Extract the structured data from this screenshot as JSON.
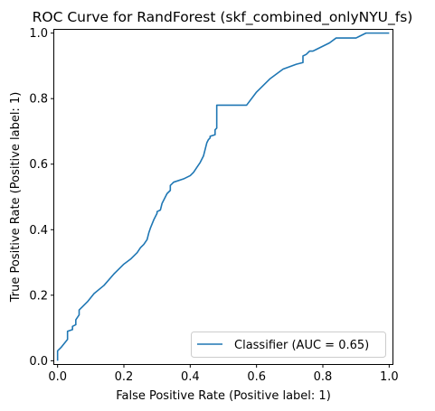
{
  "chart_data": {
    "type": "line",
    "title": "ROC Curve for RandForest (skf_combined_onlyNYU_fs)",
    "xlabel": "False Positive Rate (Positive label: 1)",
    "ylabel": "True Positive Rate (Positive label: 1)",
    "xlim": [
      -0.01,
      1.01
    ],
    "ylim": [
      -0.01,
      1.01
    ],
    "xticks": [
      0.0,
      0.2,
      0.4,
      0.6,
      0.8,
      1.0
    ],
    "yticks": [
      0.0,
      0.2,
      0.4,
      0.6,
      0.8,
      1.0
    ],
    "xtick_labels": [
      "0.0",
      "0.2",
      "0.4",
      "0.6",
      "0.8",
      "1.0"
    ],
    "ytick_labels": [
      "0.0",
      "0.2",
      "0.4",
      "0.6",
      "0.8",
      "1.0"
    ],
    "grid": false,
    "legend_position": "lower-right",
    "color": "#1f77b4",
    "series": [
      {
        "name": "Classifier (AUC = 0.65)",
        "x": [
          0.0,
          0.0,
          0.01,
          0.03,
          0.03,
          0.045,
          0.045,
          0.055,
          0.055,
          0.065,
          0.065,
          0.075,
          0.09,
          0.11,
          0.14,
          0.17,
          0.2,
          0.22,
          0.24,
          0.25,
          0.26,
          0.27,
          0.275,
          0.28,
          0.29,
          0.3,
          0.3,
          0.31,
          0.315,
          0.33,
          0.34,
          0.34,
          0.35,
          0.38,
          0.4,
          0.41,
          0.42,
          0.43,
          0.44,
          0.445,
          0.45,
          0.455,
          0.46,
          0.46,
          0.475,
          0.475,
          0.48,
          0.48,
          0.49,
          0.53,
          0.57,
          0.6,
          0.64,
          0.68,
          0.72,
          0.74,
          0.74,
          0.75,
          0.76,
          0.77,
          0.78,
          0.8,
          0.82,
          0.84,
          0.86,
          0.87,
          0.9,
          0.91,
          0.93,
          0.94,
          1.0
        ],
        "y": [
          0.0,
          0.03,
          0.04,
          0.065,
          0.09,
          0.095,
          0.105,
          0.11,
          0.125,
          0.14,
          0.155,
          0.165,
          0.18,
          0.205,
          0.23,
          0.265,
          0.295,
          0.31,
          0.33,
          0.345,
          0.355,
          0.37,
          0.39,
          0.405,
          0.43,
          0.45,
          0.455,
          0.46,
          0.48,
          0.51,
          0.52,
          0.535,
          0.545,
          0.555,
          0.565,
          0.575,
          0.59,
          0.605,
          0.625,
          0.645,
          0.665,
          0.675,
          0.68,
          0.685,
          0.69,
          0.705,
          0.71,
          0.78,
          0.78,
          0.78,
          0.78,
          0.82,
          0.86,
          0.89,
          0.905,
          0.91,
          0.93,
          0.935,
          0.945,
          0.945,
          0.95,
          0.96,
          0.97,
          0.985,
          0.985,
          0.985,
          0.985,
          0.99,
          1.0,
          1.0,
          1.0
        ]
      }
    ]
  }
}
